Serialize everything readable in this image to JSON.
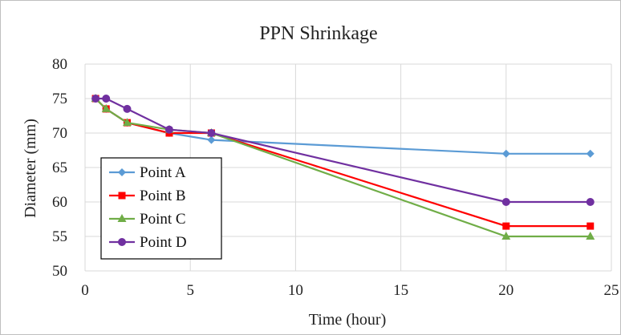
{
  "chart_data": {
    "type": "line",
    "title": "PPN Shrinkage",
    "xlabel": "Time (hour)",
    "ylabel": "Diameter (mm)",
    "xlim": [
      0,
      25
    ],
    "ylim": [
      50,
      80
    ],
    "xticks": [
      0,
      5,
      10,
      15,
      20,
      25
    ],
    "yticks": [
      50,
      55,
      60,
      65,
      70,
      75,
      80
    ],
    "grid": true,
    "legend_position": "bottom-left",
    "series": [
      {
        "name": "Point A",
        "color": "#5b9bd5",
        "marker": "diamond",
        "x": [
          0.5,
          1,
          2,
          4,
          6,
          20,
          24
        ],
        "y": [
          75,
          73.5,
          71.5,
          70,
          69,
          67,
          67
        ]
      },
      {
        "name": "Point B",
        "color": "#ff0000",
        "marker": "square",
        "x": [
          0.5,
          1,
          2,
          4,
          6,
          20,
          24
        ],
        "y": [
          75,
          73.5,
          71.5,
          70,
          70,
          56.5,
          56.5
        ]
      },
      {
        "name": "Point C",
        "color": "#70ad47",
        "marker": "triangle",
        "x": [
          0.5,
          1,
          2,
          4,
          6,
          20,
          24
        ],
        "y": [
          75,
          73.5,
          71.5,
          70.5,
          70,
          55,
          55
        ]
      },
      {
        "name": "Point D",
        "color": "#7030a0",
        "marker": "circle",
        "x": [
          0.5,
          1,
          2,
          4,
          6,
          20,
          24
        ],
        "y": [
          75,
          75,
          73.5,
          70.5,
          70,
          60,
          60
        ]
      }
    ]
  }
}
